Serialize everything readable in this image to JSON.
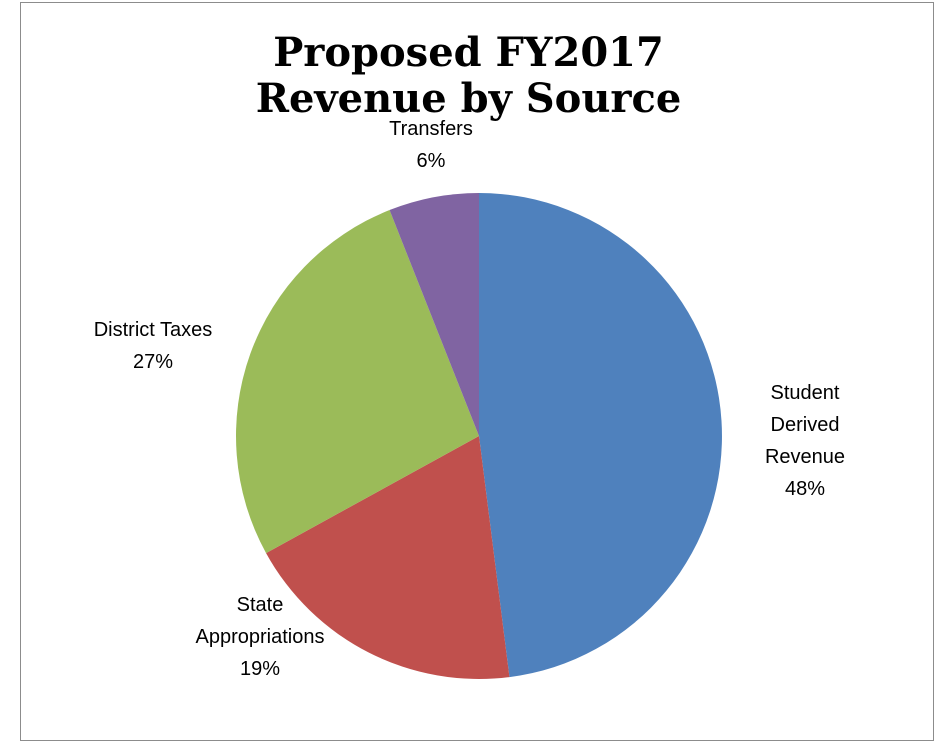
{
  "chart_data": {
    "type": "pie",
    "title_lines": [
      "Proposed FY2017",
      "Revenue by Source"
    ],
    "slices": [
      {
        "label_lines": [
          "Student",
          "Derived",
          "Revenue"
        ],
        "percent_label": "48%",
        "value": 48,
        "color": "#4F81BD"
      },
      {
        "label_lines": [
          "State",
          "Appropriations"
        ],
        "percent_label": "19%",
        "value": 19,
        "color": "#C0504D"
      },
      {
        "label_lines": [
          "District Taxes"
        ],
        "percent_label": "27%",
        "value": 27,
        "color": "#9BBB59"
      },
      {
        "label_lines": [
          "Transfers"
        ],
        "percent_label": "6%",
        "value": 6,
        "color": "#8064A2"
      }
    ],
    "legend": "none"
  }
}
